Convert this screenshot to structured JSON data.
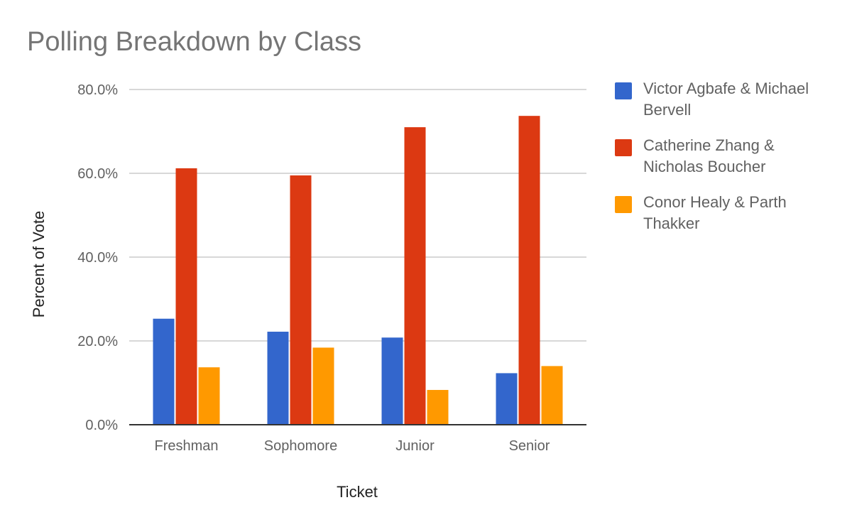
{
  "chart_data": {
    "type": "bar",
    "title": "Polling Breakdown by Class",
    "xlabel": "Ticket",
    "ylabel": "Percent of Vote",
    "categories": [
      "Freshman",
      "Sophomore",
      "Junior",
      "Senior"
    ],
    "ylim": [
      0,
      80
    ],
    "yticks": [
      0,
      20,
      40,
      60,
      80
    ],
    "ytick_labels": [
      "0.0%",
      "20.0%",
      "40.0%",
      "60.0%",
      "80.0%"
    ],
    "grid": true,
    "legend_position": "right",
    "series": [
      {
        "name": "Victor Agbafe & Michael Bervell",
        "color": "#3366cc",
        "values": [
          25.3,
          22.2,
          20.8,
          12.3
        ]
      },
      {
        "name": "Catherine Zhang & Nicholas Boucher",
        "color": "#dc3912",
        "values": [
          61.2,
          59.5,
          71.0,
          73.7
        ]
      },
      {
        "name": "Conor Healy & Parth Thakker",
        "color": "#ff9900",
        "values": [
          13.7,
          18.4,
          8.3,
          14.0
        ]
      }
    ]
  }
}
